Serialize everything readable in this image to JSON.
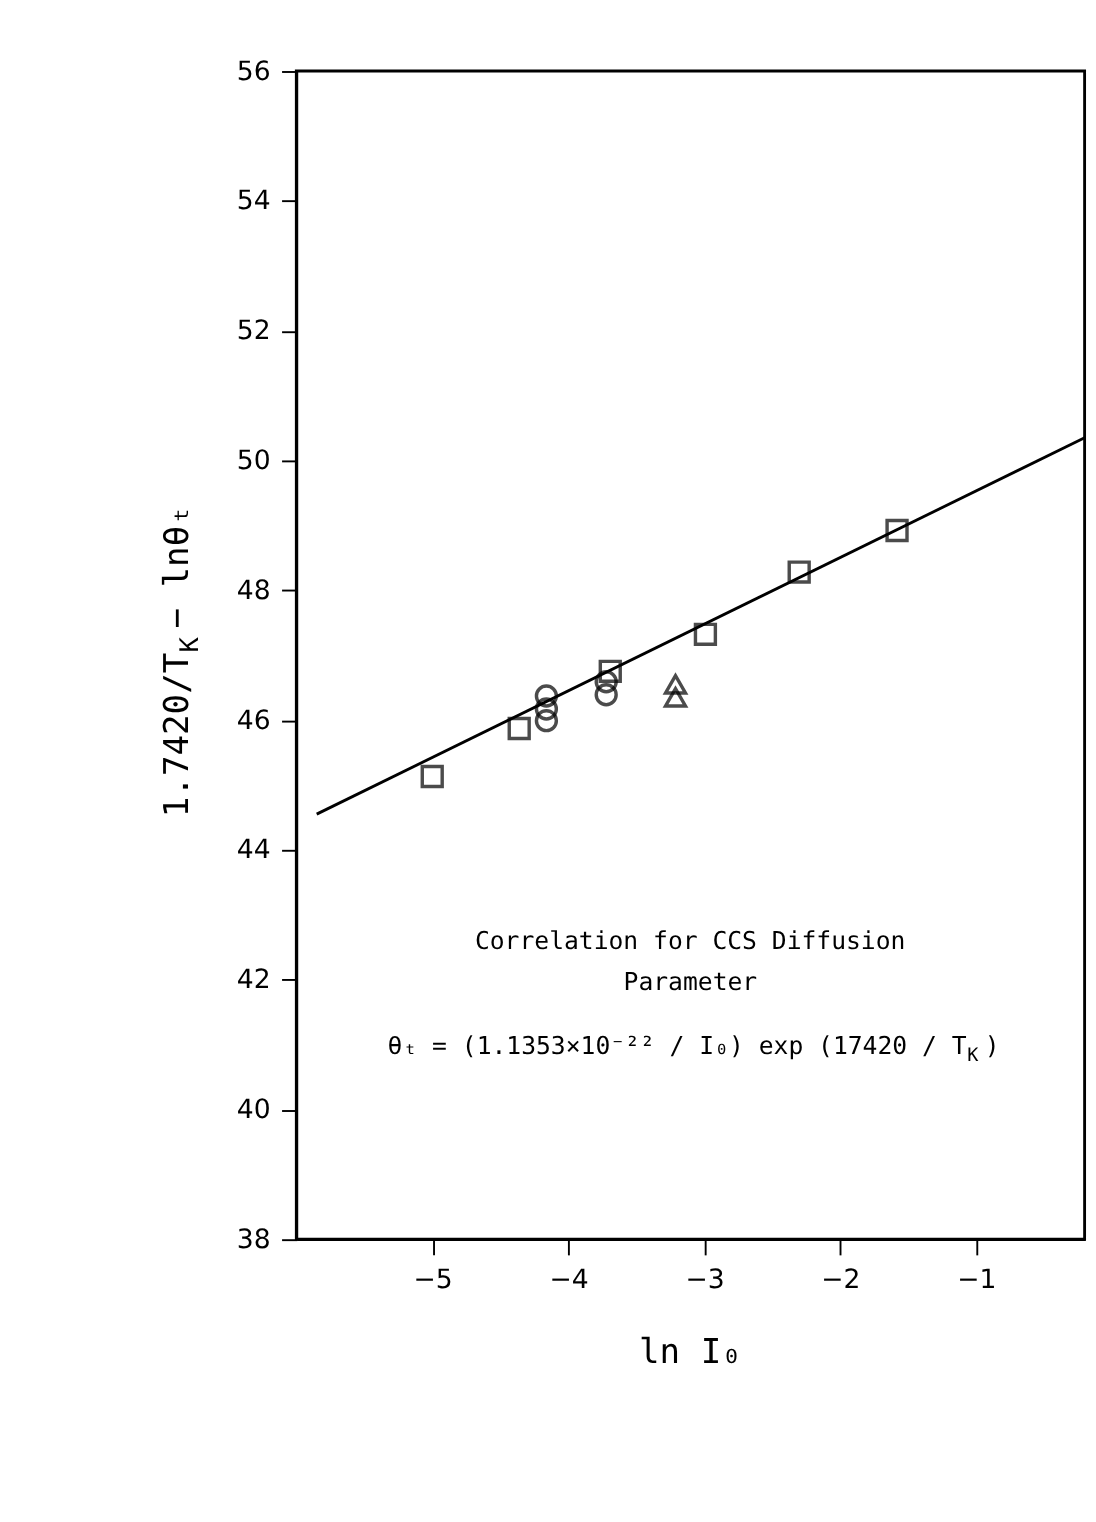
{
  "chart_data": {
    "type": "scatter",
    "xlabel": "ln I₀",
    "ylabel": "1.7420/T$_{K}$ − lnθₜ",
    "xlim": [
      -6,
      -0.2
    ],
    "ylim": [
      38,
      56
    ],
    "xticks": [
      -5,
      -4,
      -3,
      -2,
      -1
    ],
    "yticks": [
      38,
      40,
      42,
      44,
      46,
      48,
      50,
      52,
      54,
      56
    ],
    "grid": false,
    "legend": false,
    "series": [
      {
        "type": "scatter",
        "marker": "square",
        "color": "#000000",
        "x": [
          -5.0,
          -4.36,
          -3.69,
          -2.99,
          -2.3,
          -1.58
        ],
        "values": [
          45.13,
          45.87,
          46.75,
          47.32,
          48.28,
          48.92
        ]
      },
      {
        "type": "scatter",
        "marker": "circle",
        "color": "#000000",
        "x": [
          -4.16,
          -4.16,
          -4.16,
          -3.72,
          -3.72
        ],
        "values": [
          46.37,
          46.17,
          45.99,
          46.59,
          46.39
        ]
      },
      {
        "type": "scatter",
        "marker": "triangle",
        "color": "#000000",
        "x": [
          -3.21,
          -3.21
        ],
        "values": [
          46.55,
          46.35
        ]
      },
      {
        "type": "line",
        "marker": "none",
        "color": "#000000",
        "x": [
          -5.85,
          -0.2
        ],
        "values": [
          44.55,
          50.35
        ]
      }
    ],
    "annotations": [
      "Correlation for CCS Diffusion",
      "Parameter",
      "θₜ = (1.1353×10⁻²² / I₀) exp (17420 / T$_{K}$)"
    ]
  }
}
